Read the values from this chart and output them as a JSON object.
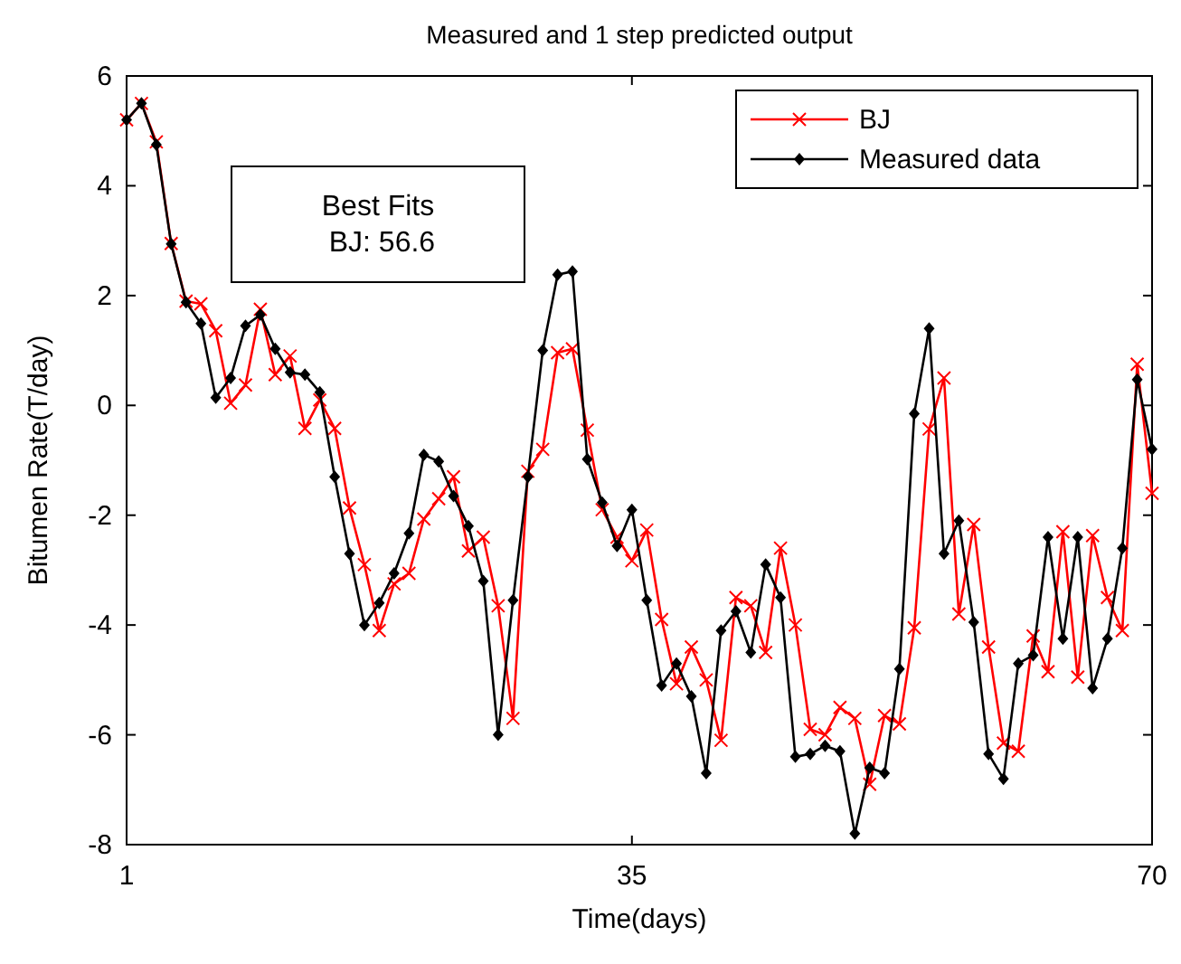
{
  "chart_data": {
    "type": "line",
    "title": "Measured and 1 step predicted output",
    "xlabel": "Time(days)",
    "ylabel": "Bitumen Rate(T/day)",
    "x": [
      1,
      2,
      3,
      4,
      5,
      6,
      7,
      8,
      9,
      10,
      11,
      12,
      13,
      14,
      15,
      16,
      17,
      18,
      19,
      20,
      21,
      22,
      23,
      24,
      25,
      26,
      27,
      28,
      29,
      30,
      31,
      32,
      33,
      34,
      35,
      36,
      37,
      38,
      39,
      40,
      41,
      42,
      43,
      44,
      45,
      46,
      47,
      48,
      49,
      50,
      51,
      52,
      53,
      54,
      55,
      56,
      57,
      58,
      59,
      60,
      61,
      62,
      63,
      64,
      65,
      66,
      67,
      68,
      69,
      70
    ],
    "xlim": [
      1,
      70
    ],
    "xticks": [
      1,
      35,
      70
    ],
    "ylim": [
      -8,
      6
    ],
    "yticks": [
      -8,
      -6,
      -4,
      -2,
      0,
      2,
      4,
      6
    ],
    "grid": false,
    "legend": "top right",
    "annotations": [
      "Best Fits\n BJ: 56.6"
    ],
    "series": [
      {
        "name": "BJ",
        "color": "#ff0000",
        "marker": "cross",
        "values": [
          5.2,
          5.5,
          4.8,
          2.95,
          1.9,
          1.85,
          1.36,
          0.04,
          0.37,
          1.75,
          0.56,
          0.9,
          -0.42,
          0.1,
          -0.42,
          -1.87,
          -2.9,
          -4.1,
          -3.25,
          -3.06,
          -2.07,
          -1.7,
          -1.3,
          -2.65,
          -2.4,
          -3.65,
          -5.7,
          -1.2,
          -0.8,
          0.96,
          1.03,
          -0.45,
          -1.9,
          -2.4,
          -2.83,
          -2.27,
          -3.9,
          -5.07,
          -4.4,
          -5.0,
          -6.1,
          -3.5,
          -3.65,
          -4.5,
          -2.6,
          -4.0,
          -5.9,
          -6.0,
          -5.5,
          -5.7,
          -6.9,
          -5.65,
          -5.8,
          -4.05,
          -0.43,
          0.5,
          -3.8,
          -2.17,
          -4.4,
          -6.15,
          -6.3,
          -4.2,
          -4.85,
          -2.3,
          -4.95,
          -2.37,
          -3.5,
          -4.1,
          0.75,
          -1.6
        ]
      },
      {
        "name": "Measured data",
        "color": "#000000",
        "marker": "diamond",
        "values": [
          5.2,
          5.5,
          4.75,
          2.94,
          1.88,
          1.49,
          0.14,
          0.5,
          1.45,
          1.65,
          1.03,
          0.6,
          0.56,
          0.24,
          -1.3,
          -2.7,
          -4.0,
          -3.6,
          -3.06,
          -2.33,
          -0.9,
          -1.02,
          -1.65,
          -2.2,
          -3.2,
          -6.0,
          -3.55,
          -1.3,
          1.0,
          2.38,
          2.44,
          -0.98,
          -1.77,
          -2.56,
          -1.9,
          -3.55,
          -5.1,
          -4.7,
          -5.3,
          -6.7,
          -4.1,
          -3.75,
          -4.5,
          -2.9,
          -3.5,
          -6.4,
          -6.35,
          -6.2,
          -6.3,
          -7.8,
          -6.6,
          -6.7,
          -4.8,
          -0.15,
          1.4,
          -2.7,
          -2.1,
          -3.95,
          -6.35,
          -6.8,
          -4.7,
          -4.55,
          -2.4,
          -4.25,
          -2.4,
          -5.15,
          -4.25,
          -2.6,
          0.47,
          -0.8
        ]
      }
    ]
  }
}
